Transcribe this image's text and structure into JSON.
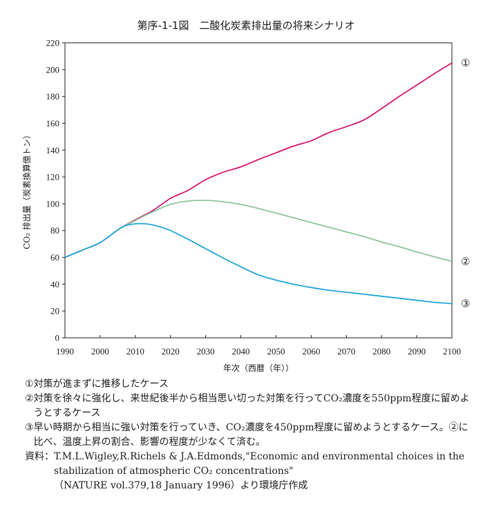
{
  "chart_data": {
    "type": "line",
    "title": "第序-1-1図　二酸化炭素排出量の将来シナリオ",
    "xlabel": "年次（西暦（年））",
    "ylabel": "CO₂ 排出量（炭素換算億トン）",
    "xlim": [
      1990,
      2100
    ],
    "ylim": [
      0,
      220
    ],
    "x_ticks": [
      "1990",
      "2000",
      "2010",
      "2020",
      "2030",
      "2040",
      "2050",
      "2060",
      "2070",
      "2080",
      "2090",
      "2100"
    ],
    "y_ticks": [
      "0",
      "20",
      "40",
      "60",
      "80",
      "100",
      "120",
      "140",
      "160",
      "180",
      "200",
      "220"
    ],
    "grid": false,
    "series": [
      {
        "name": "①",
        "color": "#d0136d",
        "x": [
          1990,
          1995,
          2000,
          2005,
          2010,
          2015,
          2020,
          2025,
          2030,
          2035,
          2040,
          2045,
          2050,
          2055,
          2060,
          2065,
          2070,
          2075,
          2080,
          2085,
          2090,
          2095,
          2100
        ],
        "y": [
          60,
          65.5,
          71,
          80.5,
          88,
          95,
          104,
          110,
          118,
          123.5,
          127.5,
          133,
          138,
          143,
          147,
          153,
          157.5,
          162.5,
          171,
          180,
          188.5,
          197,
          205
        ]
      },
      {
        "name": "②",
        "color": "#8dc49a",
        "x": [
          1990,
          1995,
          2000,
          2005,
          2010,
          2015,
          2020,
          2025,
          2030,
          2035,
          2040,
          2045,
          2050,
          2055,
          2060,
          2065,
          2070,
          2075,
          2080,
          2085,
          2090,
          2095,
          2100
        ],
        "y": [
          60,
          65.5,
          71,
          80.5,
          87.5,
          94,
          99.5,
          102,
          102.5,
          101.5,
          99.5,
          96.5,
          93,
          89.5,
          86,
          82.5,
          79,
          75.5,
          71.5,
          68,
          64,
          60.5,
          57
        ]
      },
      {
        "name": "③",
        "color": "#1fa4da",
        "x": [
          1990,
          1995,
          2000,
          2005,
          2007,
          2010,
          2013,
          2016,
          2020,
          2025,
          2030,
          2035,
          2040,
          2045,
          2050,
          2055,
          2060,
          2065,
          2070,
          2075,
          2080,
          2085,
          2090,
          2095,
          2100
        ],
        "y": [
          60,
          65.5,
          71,
          80.5,
          83.5,
          85,
          85,
          83.5,
          80,
          73.5,
          66.5,
          59.5,
          53,
          47,
          43,
          40,
          37.5,
          35.5,
          34,
          32.5,
          31,
          29.5,
          28,
          26.5,
          25.5
        ]
      }
    ]
  },
  "notes": [
    {
      "mark": "①",
      "text": "対策が進まずに推移したケース"
    },
    {
      "mark": "②",
      "text": "対策を徐々に強化し、来世紀後半から相当思い切った対策を行ってCO₂濃度を550ppm程度に留めようとするケース"
    },
    {
      "mark": "③",
      "text": "早い時期から相当に強い対策を行っていき、CO₂濃度を450ppm程度に留めようとするケース。②に比べ、温度上昇の割合、影響の程度が少なくて済む。"
    }
  ],
  "source": {
    "label": "資料：",
    "lines": [
      "T.M.L.Wigley,R.Richels & J.A.Edmonds,\"Economic and environmental choices in the",
      "stabilization of atmospheric CO₂ concentrations\"",
      "（NATURE vol.379,18 January 1996）より環境庁作成"
    ]
  }
}
